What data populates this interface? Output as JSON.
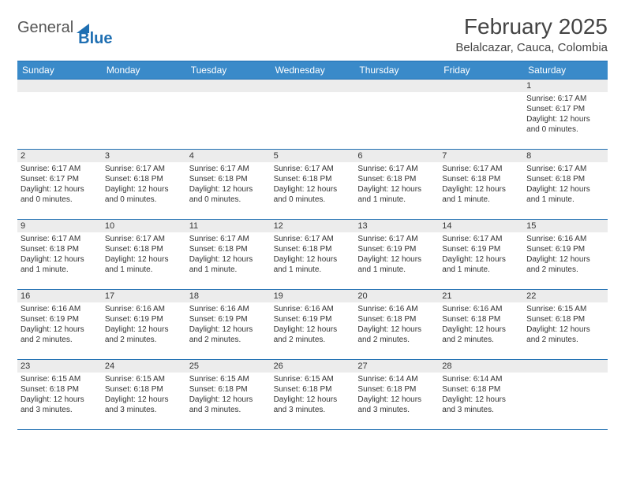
{
  "logo": {
    "word1": "General",
    "word2": "Blue"
  },
  "title": "February 2025",
  "location": "Belalcazar, Cauca, Colombia",
  "weekdays": [
    "Sunday",
    "Monday",
    "Tuesday",
    "Wednesday",
    "Thursday",
    "Friday",
    "Saturday"
  ],
  "colors": {
    "header_bg": "#3a8ac9",
    "border": "#1f6fb2",
    "daynum_bg": "#ececec",
    "text": "#333333"
  },
  "startOffset": 6,
  "days": [
    {
      "n": 1,
      "sunrise": "6:17 AM",
      "sunset": "6:17 PM",
      "daylight": "12 hours and 0 minutes."
    },
    {
      "n": 2,
      "sunrise": "6:17 AM",
      "sunset": "6:17 PM",
      "daylight": "12 hours and 0 minutes."
    },
    {
      "n": 3,
      "sunrise": "6:17 AM",
      "sunset": "6:18 PM",
      "daylight": "12 hours and 0 minutes."
    },
    {
      "n": 4,
      "sunrise": "6:17 AM",
      "sunset": "6:18 PM",
      "daylight": "12 hours and 0 minutes."
    },
    {
      "n": 5,
      "sunrise": "6:17 AM",
      "sunset": "6:18 PM",
      "daylight": "12 hours and 0 minutes."
    },
    {
      "n": 6,
      "sunrise": "6:17 AM",
      "sunset": "6:18 PM",
      "daylight": "12 hours and 1 minute."
    },
    {
      "n": 7,
      "sunrise": "6:17 AM",
      "sunset": "6:18 PM",
      "daylight": "12 hours and 1 minute."
    },
    {
      "n": 8,
      "sunrise": "6:17 AM",
      "sunset": "6:18 PM",
      "daylight": "12 hours and 1 minute."
    },
    {
      "n": 9,
      "sunrise": "6:17 AM",
      "sunset": "6:18 PM",
      "daylight": "12 hours and 1 minute."
    },
    {
      "n": 10,
      "sunrise": "6:17 AM",
      "sunset": "6:18 PM",
      "daylight": "12 hours and 1 minute."
    },
    {
      "n": 11,
      "sunrise": "6:17 AM",
      "sunset": "6:18 PM",
      "daylight": "12 hours and 1 minute."
    },
    {
      "n": 12,
      "sunrise": "6:17 AM",
      "sunset": "6:18 PM",
      "daylight": "12 hours and 1 minute."
    },
    {
      "n": 13,
      "sunrise": "6:17 AM",
      "sunset": "6:19 PM",
      "daylight": "12 hours and 1 minute."
    },
    {
      "n": 14,
      "sunrise": "6:17 AM",
      "sunset": "6:19 PM",
      "daylight": "12 hours and 1 minute."
    },
    {
      "n": 15,
      "sunrise": "6:16 AM",
      "sunset": "6:19 PM",
      "daylight": "12 hours and 2 minutes."
    },
    {
      "n": 16,
      "sunrise": "6:16 AM",
      "sunset": "6:19 PM",
      "daylight": "12 hours and 2 minutes."
    },
    {
      "n": 17,
      "sunrise": "6:16 AM",
      "sunset": "6:19 PM",
      "daylight": "12 hours and 2 minutes."
    },
    {
      "n": 18,
      "sunrise": "6:16 AM",
      "sunset": "6:19 PM",
      "daylight": "12 hours and 2 minutes."
    },
    {
      "n": 19,
      "sunrise": "6:16 AM",
      "sunset": "6:19 PM",
      "daylight": "12 hours and 2 minutes."
    },
    {
      "n": 20,
      "sunrise": "6:16 AM",
      "sunset": "6:18 PM",
      "daylight": "12 hours and 2 minutes."
    },
    {
      "n": 21,
      "sunrise": "6:16 AM",
      "sunset": "6:18 PM",
      "daylight": "12 hours and 2 minutes."
    },
    {
      "n": 22,
      "sunrise": "6:15 AM",
      "sunset": "6:18 PM",
      "daylight": "12 hours and 2 minutes."
    },
    {
      "n": 23,
      "sunrise": "6:15 AM",
      "sunset": "6:18 PM",
      "daylight": "12 hours and 3 minutes."
    },
    {
      "n": 24,
      "sunrise": "6:15 AM",
      "sunset": "6:18 PM",
      "daylight": "12 hours and 3 minutes."
    },
    {
      "n": 25,
      "sunrise": "6:15 AM",
      "sunset": "6:18 PM",
      "daylight": "12 hours and 3 minutes."
    },
    {
      "n": 26,
      "sunrise": "6:15 AM",
      "sunset": "6:18 PM",
      "daylight": "12 hours and 3 minutes."
    },
    {
      "n": 27,
      "sunrise": "6:14 AM",
      "sunset": "6:18 PM",
      "daylight": "12 hours and 3 minutes."
    },
    {
      "n": 28,
      "sunrise": "6:14 AM",
      "sunset": "6:18 PM",
      "daylight": "12 hours and 3 minutes."
    }
  ],
  "labels": {
    "sunrise": "Sunrise:",
    "sunset": "Sunset:",
    "daylight": "Daylight:"
  }
}
